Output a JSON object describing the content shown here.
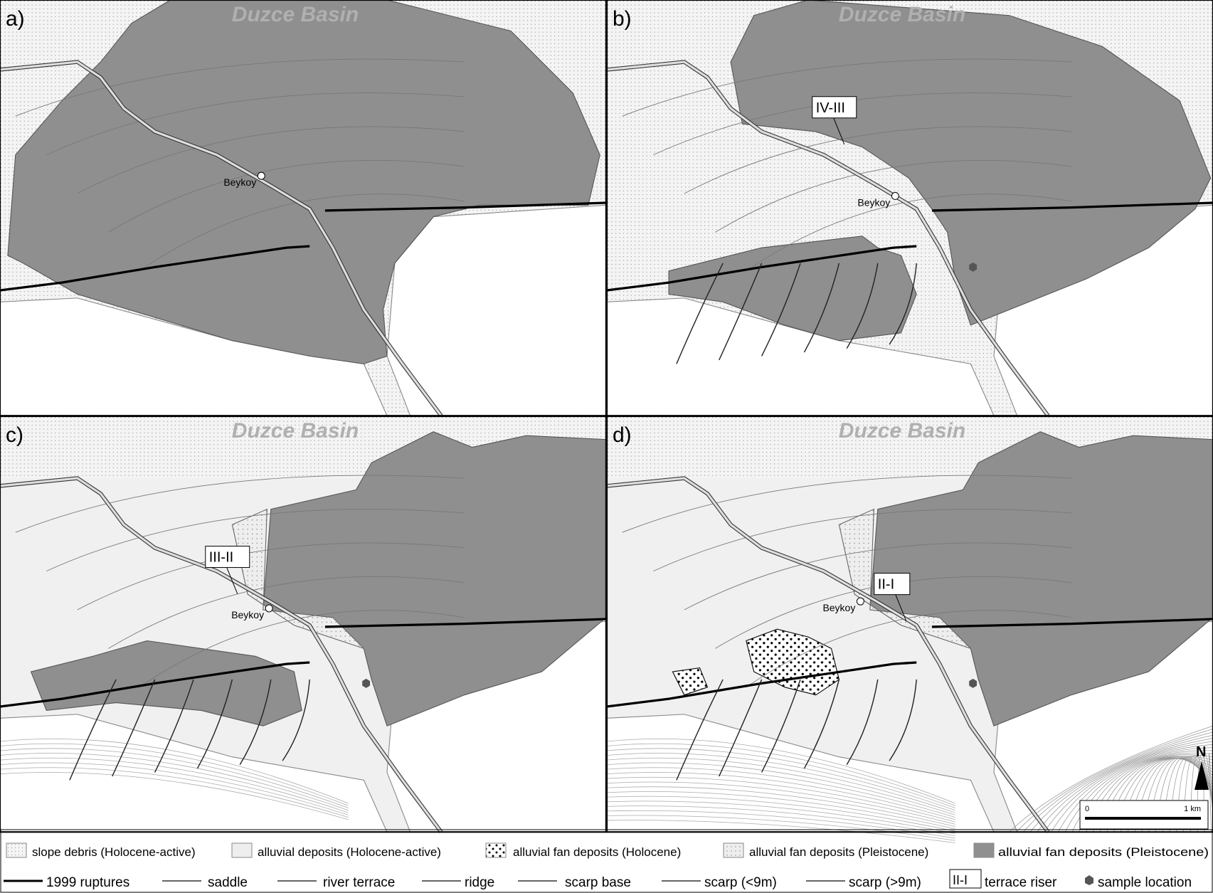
{
  "panels": [
    {
      "label": "a)",
      "basin": "Duzce Basin",
      "village": "Beykoy"
    },
    {
      "label": "b)",
      "basin": "Duzce Basin",
      "village": "Beykoy",
      "riser": "IV-III"
    },
    {
      "label": "c)",
      "basin": "Duzce Basin",
      "village": "Beykoy",
      "riser": "III-II"
    },
    {
      "label": "d)",
      "basin": "Duzce Basin",
      "village": "Beykoy",
      "riser": "II-I",
      "north": "N",
      "scale": [
        "0",
        "1 km"
      ]
    }
  ],
  "legend": {
    "units": [
      {
        "label": "slope debris (Holocene-active)"
      },
      {
        "label": "alluvial deposits (Holocene-active)"
      },
      {
        "label": "alluvial fan deposits (Holocene)"
      },
      {
        "label": "alluvial fan deposits (Pleistocene)"
      },
      {
        "label": "alluvial fan deposits (Pleistocene)"
      }
    ],
    "symbols": [
      {
        "label": "1999 ruptures"
      },
      {
        "label": "saddle"
      },
      {
        "label": "river terrace"
      },
      {
        "label": "ridge"
      },
      {
        "label": "scarp base"
      },
      {
        "label": "scarp (<9m)"
      },
      {
        "label": "scarp (>9m)"
      },
      {
        "box": "II-I",
        "label": "terrace riser"
      },
      {
        "label": "sample location"
      }
    ]
  }
}
